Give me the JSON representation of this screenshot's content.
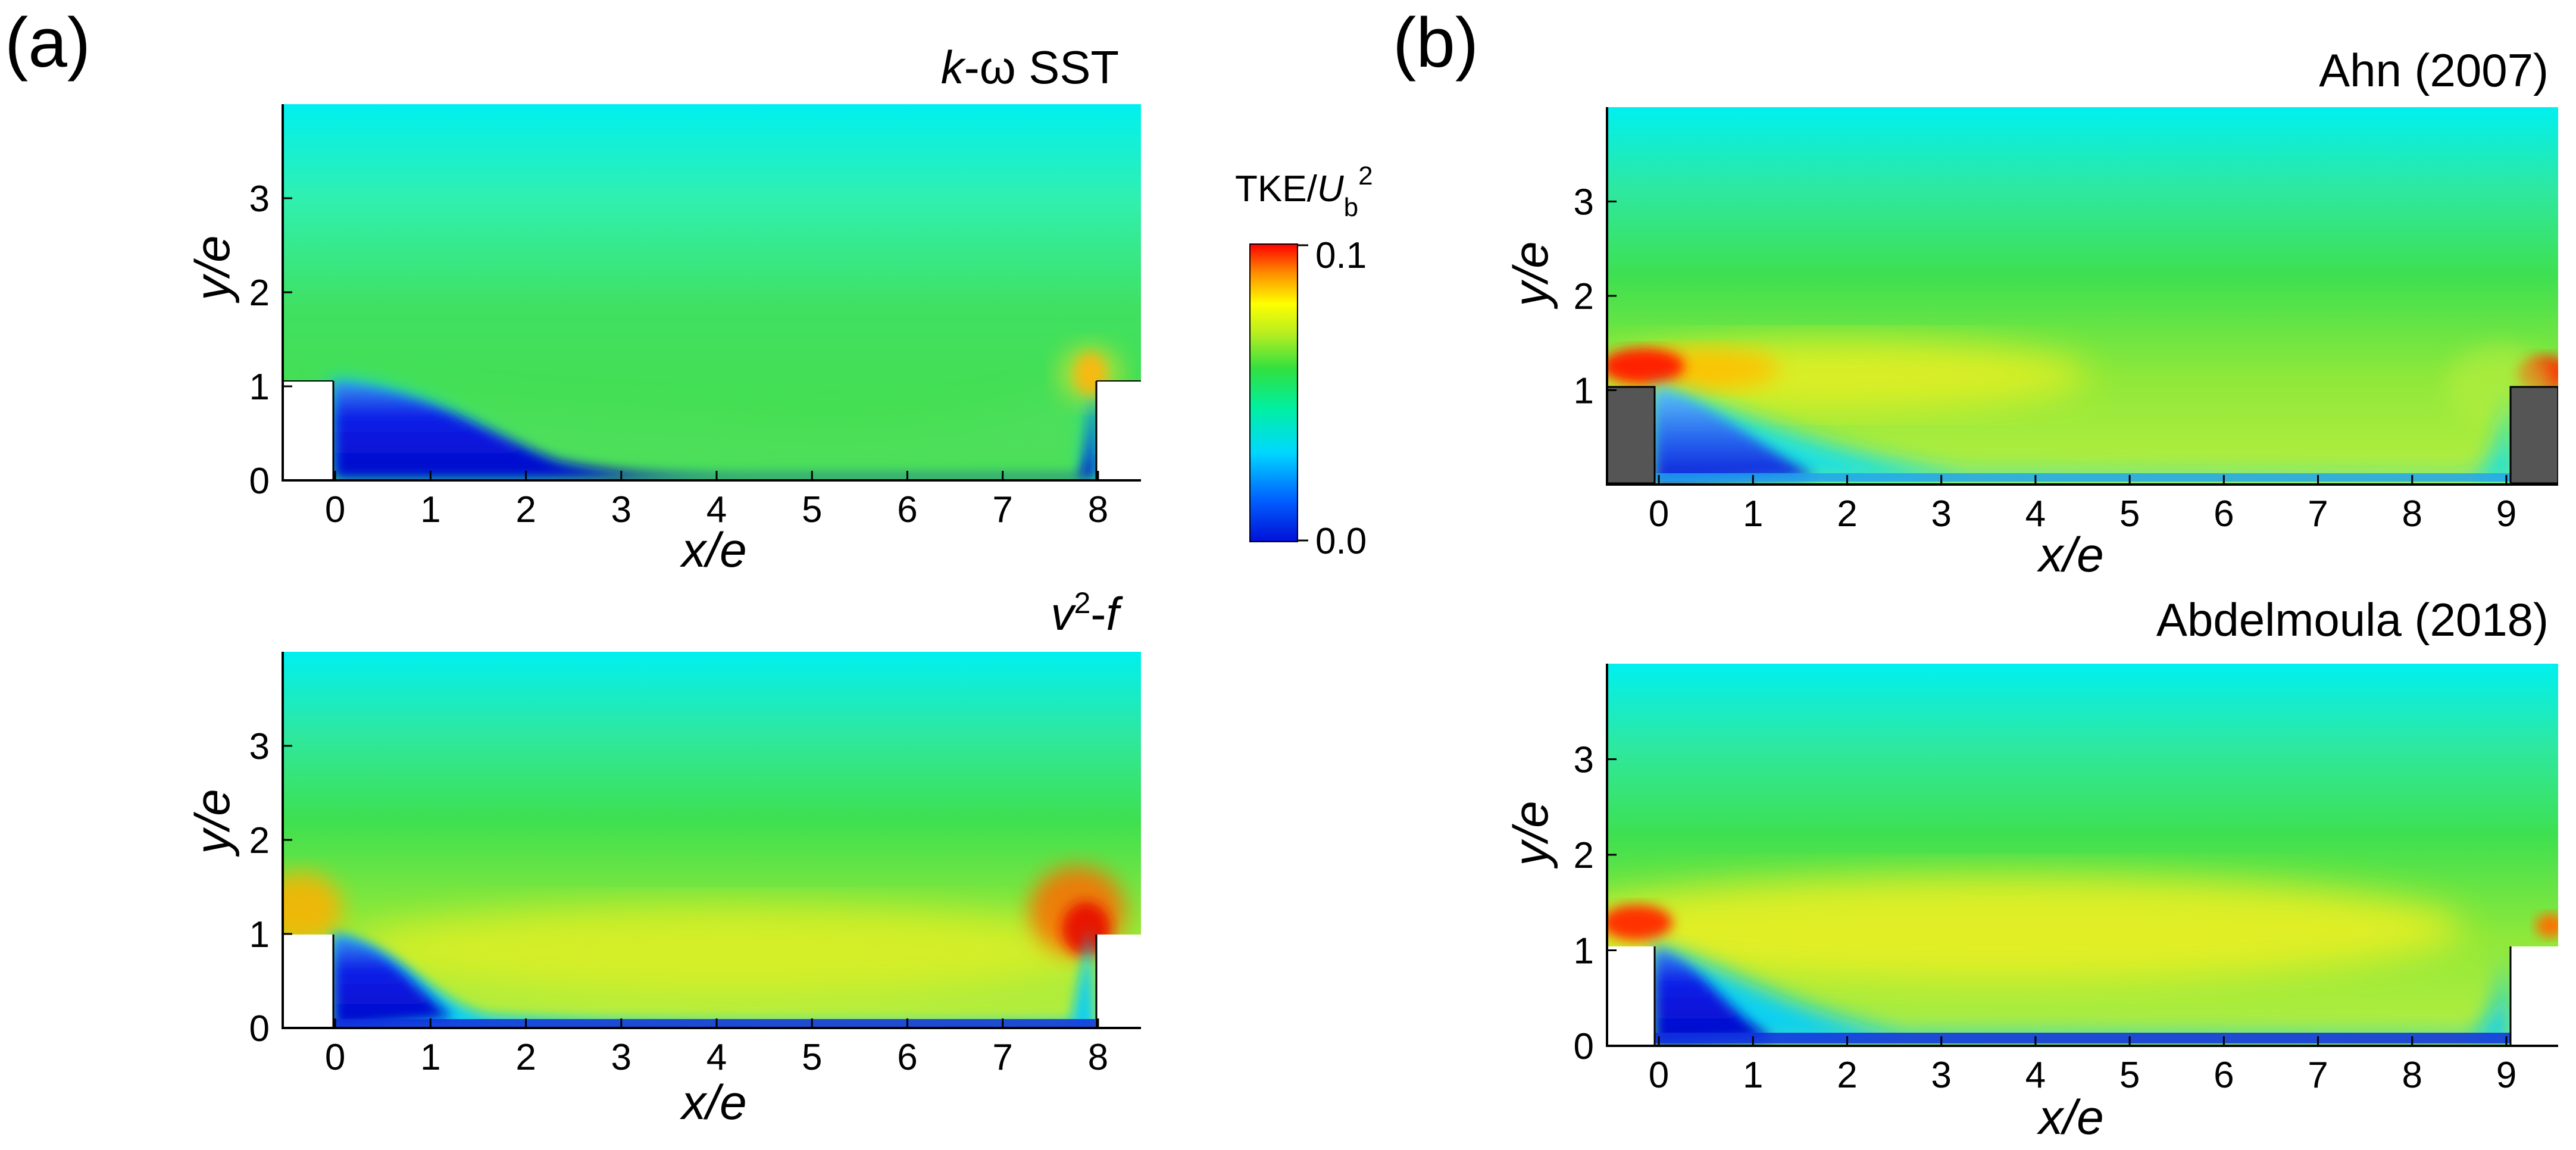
{
  "figure": {
    "panel_a_label": "(a)",
    "panel_b_label": "(b)"
  },
  "colorbar": {
    "label_main": "TKE/",
    "label_var": "U",
    "label_sub": "b",
    "label_sup": "2",
    "max_label": "0.1",
    "min_label": "0.0",
    "range": [
      0.0,
      0.1
    ]
  },
  "chart_data": [
    {
      "id": "a-top",
      "type": "heatmap",
      "title": "k-ω SST",
      "title_parts": [
        "k",
        "-ω SST"
      ],
      "xlabel": "x/e",
      "ylabel": "y/e",
      "xlim": [
        -0.55,
        8.45
      ],
      "ylim": [
        0,
        4
      ],
      "xticks": [
        "0",
        "1",
        "2",
        "3",
        "4",
        "5",
        "6",
        "7",
        "8"
      ],
      "yticks": [
        "0",
        "1",
        "2",
        "3"
      ],
      "rib_style": "blank",
      "ribs": [
        [
          -0.55,
          0.0,
          1.0
        ],
        [
          7.9,
          8.45,
          1.0
        ]
      ],
      "cavity_width": 8
    },
    {
      "id": "a-bottom",
      "type": "heatmap",
      "title": "v2-f",
      "title_parts": [
        "v",
        "2",
        "-",
        "f"
      ],
      "xlabel": "x/e",
      "ylabel": "y/e",
      "xlim": [
        -0.55,
        8.45
      ],
      "ylim": [
        0,
        4
      ],
      "xticks": [
        "0",
        "1",
        "2",
        "3",
        "4",
        "5",
        "6",
        "7",
        "8"
      ],
      "yticks": [
        "0",
        "1",
        "2",
        "3"
      ],
      "rib_style": "blank",
      "ribs": [
        [
          -0.55,
          0.0,
          1.0
        ],
        [
          7.9,
          8.45,
          1.0
        ]
      ],
      "cavity_width": 8
    },
    {
      "id": "b-top",
      "type": "heatmap",
      "title": "Ahn (2007)",
      "xlabel": "x/e",
      "ylabel": "y/e",
      "xlim": [
        -0.55,
        9.55
      ],
      "ylim": [
        0,
        4
      ],
      "xticks": [
        "0",
        "1",
        "2",
        "3",
        "4",
        "5",
        "6",
        "7",
        "8",
        "9"
      ],
      "yticks": [
        "1",
        "2",
        "3"
      ],
      "rib_style": "gray",
      "ribs": [
        [
          -0.55,
          0.0,
          1.0
        ],
        [
          9.0,
          9.55,
          1.0
        ]
      ],
      "cavity_width": 9
    },
    {
      "id": "b-bottom",
      "type": "heatmap",
      "title": "Abdelmoula (2018)",
      "xlabel": "x/e",
      "ylabel": "y/e",
      "xlim": [
        -0.55,
        9.55
      ],
      "ylim": [
        0,
        4
      ],
      "xticks": [
        "0",
        "1",
        "2",
        "3",
        "4",
        "5",
        "6",
        "7",
        "8",
        "9"
      ],
      "yticks": [
        "0",
        "1",
        "2",
        "3"
      ],
      "rib_style": "blank",
      "ribs": [
        [
          -0.55,
          0.0,
          1.0
        ],
        [
          9.0,
          9.55,
          1.0
        ]
      ],
      "cavity_width": 9
    }
  ]
}
